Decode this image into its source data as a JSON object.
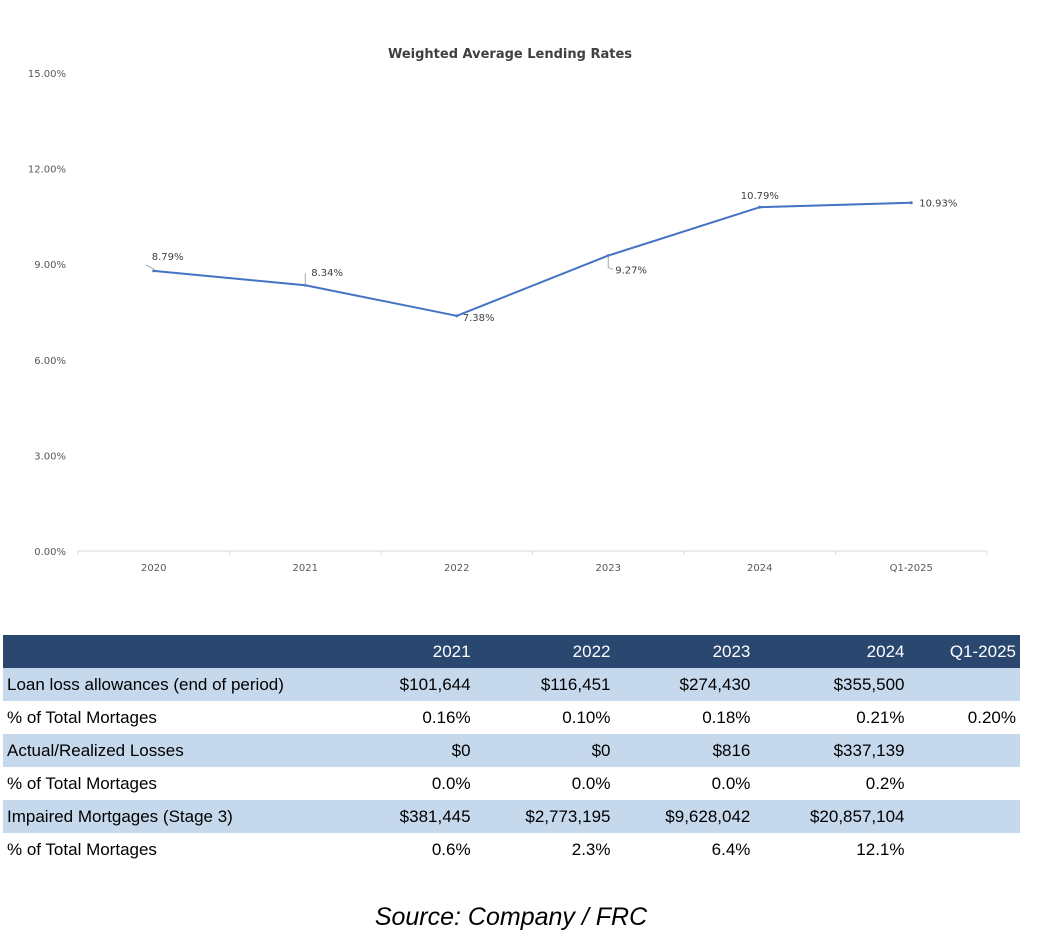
{
  "chart_data": {
    "type": "line",
    "title": "Weighted Average Lending Rates",
    "categories": [
      "2020",
      "2021",
      "2022",
      "2023",
      "2024",
      "Q1-2025"
    ],
    "series": [
      {
        "values": [
          8.79,
          8.34,
          7.38,
          9.27,
          10.79,
          10.93
        ],
        "labels": [
          "8.79%",
          "8.34%",
          "7.38%",
          "9.27%",
          "10.79%",
          "10.93%"
        ]
      }
    ],
    "ylim": [
      0,
      15
    ],
    "yticks": [
      0,
      3,
      6,
      9,
      12,
      15
    ],
    "ytick_labels": [
      "0.00%",
      "3.00%",
      "6.00%",
      "9.00%",
      "12.00%",
      "15.00%"
    ],
    "grid": false,
    "line_color": "#4472c4"
  },
  "table": {
    "headers": [
      "",
      "2021",
      "2022",
      "2023",
      "2024",
      "Q1-2025"
    ],
    "rows": [
      {
        "label": "Loan loss allowances (end of period)",
        "values": [
          "$101,644",
          "$116,451",
          "$274,430",
          "$355,500",
          ""
        ]
      },
      {
        "label": "% of Total Mortages",
        "values": [
          "0.16%",
          "0.10%",
          "0.18%",
          "0.21%",
          "0.20%"
        ]
      },
      {
        "label": "Actual/Realized Losses",
        "values": [
          "$0",
          "$0",
          "$816",
          "$337,139",
          ""
        ]
      },
      {
        "label": "% of Total Mortages",
        "values": [
          "0.0%",
          "0.0%",
          "0.0%",
          "0.2%",
          ""
        ]
      },
      {
        "label": "Impaired Mortgages (Stage 3)",
        "values": [
          "$381,445",
          "$2,773,195",
          "$9,628,042",
          "$20,857,104",
          ""
        ]
      },
      {
        "label": "% of Total Mortages",
        "values": [
          "0.6%",
          "2.3%",
          "6.4%",
          "12.1%",
          ""
        ]
      }
    ],
    "header_color": "#2a4770",
    "shade_color": "#c6d8ec"
  },
  "source": "Source: Company / FRC"
}
